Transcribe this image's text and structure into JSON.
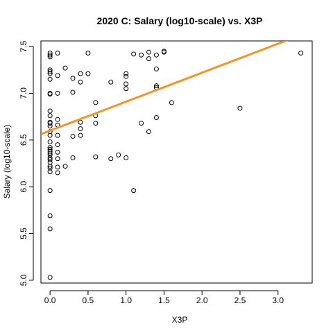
{
  "chart_data": {
    "type": "scatter",
    "title": "2020 C: Salary (log10-scale) vs. X3P",
    "xlabel": "X3P",
    "ylabel": "Salary (log10-scale)",
    "xlim": [
      -0.12,
      3.45
    ],
    "ylim": [
      4.97,
      7.56
    ],
    "xticks": [
      0.0,
      0.5,
      1.0,
      1.5,
      2.0,
      2.5,
      3.0
    ],
    "xtick_labels": [
      "0.0",
      "0.5",
      "1.0",
      "1.5",
      "2.0",
      "2.5",
      "3.0"
    ],
    "yticks": [
      5.0,
      5.5,
      6.0,
      6.5,
      7.0,
      7.5
    ],
    "ytick_labels": [
      "5.0",
      "5.5",
      "6.0",
      "6.5",
      "7.0",
      "7.5"
    ],
    "grid": false,
    "points": [
      {
        "x": 0.0,
        "y": 7.43
      },
      {
        "x": 0.0,
        "y": 7.41
      },
      {
        "x": 0.0,
        "y": 7.39
      },
      {
        "x": 0.0,
        "y": 7.25
      },
      {
        "x": 0.0,
        "y": 7.23
      },
      {
        "x": 0.0,
        "y": 7.21
      },
      {
        "x": 0.0,
        "y": 7.15
      },
      {
        "x": 0.0,
        "y": 7.0
      },
      {
        "x": 0.0,
        "y": 6.99
      },
      {
        "x": 0.0,
        "y": 6.81
      },
      {
        "x": 0.0,
        "y": 6.76
      },
      {
        "x": 0.0,
        "y": 6.69
      },
      {
        "x": 0.0,
        "y": 6.68
      },
      {
        "x": 0.0,
        "y": 6.65
      },
      {
        "x": 0.0,
        "y": 6.59
      },
      {
        "x": 0.0,
        "y": 6.55
      },
      {
        "x": 0.0,
        "y": 6.48
      },
      {
        "x": 0.0,
        "y": 6.42
      },
      {
        "x": 0.0,
        "y": 6.4
      },
      {
        "x": 0.0,
        "y": 6.38
      },
      {
        "x": 0.0,
        "y": 6.36
      },
      {
        "x": 0.0,
        "y": 6.34
      },
      {
        "x": 0.0,
        "y": 6.31
      },
      {
        "x": 0.0,
        "y": 6.29
      },
      {
        "x": 0.0,
        "y": 6.26
      },
      {
        "x": 0.0,
        "y": 6.22
      },
      {
        "x": 0.0,
        "y": 6.2
      },
      {
        "x": 0.0,
        "y": 6.16
      },
      {
        "x": 0.0,
        "y": 5.96
      },
      {
        "x": 0.0,
        "y": 5.69
      },
      {
        "x": 0.0,
        "y": 5.55
      },
      {
        "x": 0.0,
        "y": 5.03
      },
      {
        "x": 0.1,
        "y": 7.43
      },
      {
        "x": 0.1,
        "y": 7.19
      },
      {
        "x": 0.1,
        "y": 7.0
      },
      {
        "x": 0.1,
        "y": 6.72
      },
      {
        "x": 0.1,
        "y": 6.66
      },
      {
        "x": 0.1,
        "y": 6.55
      },
      {
        "x": 0.1,
        "y": 6.45
      },
      {
        "x": 0.1,
        "y": 6.37
      },
      {
        "x": 0.1,
        "y": 6.3
      },
      {
        "x": 0.1,
        "y": 6.21
      },
      {
        "x": 0.1,
        "y": 6.15
      },
      {
        "x": 0.2,
        "y": 7.27
      },
      {
        "x": 0.2,
        "y": 6.22
      },
      {
        "x": 0.3,
        "y": 7.16
      },
      {
        "x": 0.3,
        "y": 7.01
      },
      {
        "x": 0.3,
        "y": 6.54
      },
      {
        "x": 0.3,
        "y": 6.31
      },
      {
        "x": 0.4,
        "y": 7.21
      },
      {
        "x": 0.4,
        "y": 7.12
      },
      {
        "x": 0.4,
        "y": 6.69
      },
      {
        "x": 0.4,
        "y": 6.62
      },
      {
        "x": 0.4,
        "y": 6.55
      },
      {
        "x": 0.5,
        "y": 7.43
      },
      {
        "x": 0.5,
        "y": 7.21
      },
      {
        "x": 0.6,
        "y": 6.9
      },
      {
        "x": 0.6,
        "y": 6.76
      },
      {
        "x": 0.6,
        "y": 6.68
      },
      {
        "x": 0.6,
        "y": 6.32
      },
      {
        "x": 0.8,
        "y": 7.12
      },
      {
        "x": 0.8,
        "y": 6.3
      },
      {
        "x": 0.9,
        "y": 6.34
      },
      {
        "x": 1.0,
        "y": 7.21
      },
      {
        "x": 1.0,
        "y": 7.18
      },
      {
        "x": 1.0,
        "y": 7.1
      },
      {
        "x": 1.0,
        "y": 7.05
      },
      {
        "x": 1.0,
        "y": 6.31
      },
      {
        "x": 1.1,
        "y": 7.42
      },
      {
        "x": 1.1,
        "y": 5.96
      },
      {
        "x": 1.2,
        "y": 7.41
      },
      {
        "x": 1.2,
        "y": 6.68
      },
      {
        "x": 1.3,
        "y": 7.44
      },
      {
        "x": 1.3,
        "y": 7.37
      },
      {
        "x": 1.3,
        "y": 6.59
      },
      {
        "x": 1.4,
        "y": 7.41
      },
      {
        "x": 1.4,
        "y": 7.26
      },
      {
        "x": 1.4,
        "y": 7.08
      },
      {
        "x": 1.4,
        "y": 7.06
      },
      {
        "x": 1.4,
        "y": 6.74
      },
      {
        "x": 1.5,
        "y": 7.45
      },
      {
        "x": 1.5,
        "y": 7.44
      },
      {
        "x": 1.6,
        "y": 6.9
      },
      {
        "x": 2.5,
        "y": 6.84
      },
      {
        "x": 3.3,
        "y": 7.43
      }
    ],
    "fit_line": {
      "intercept": 6.6,
      "slope": 0.31,
      "color": "#F7931E"
    }
  }
}
